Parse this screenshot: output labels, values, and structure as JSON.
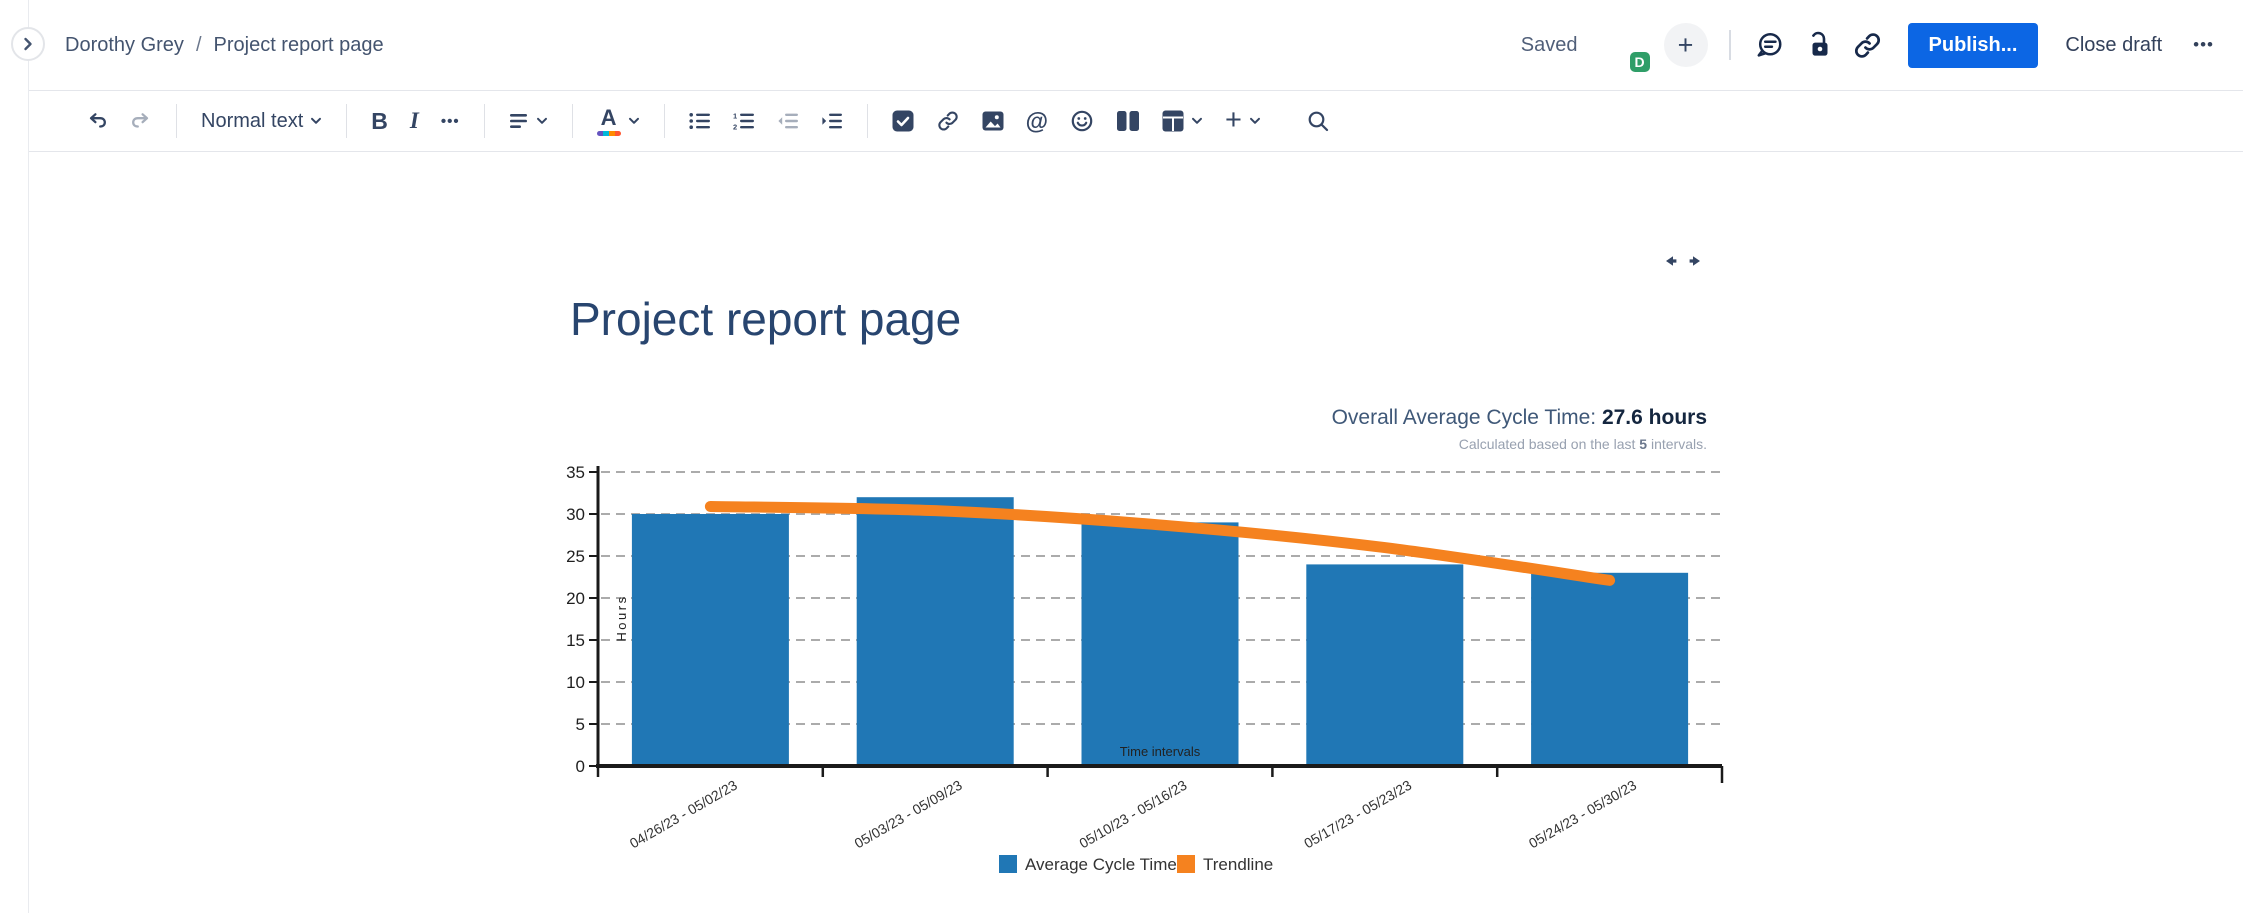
{
  "topbar": {
    "breadcrumb": {
      "items": [
        "Dorothy Grey",
        "Project report page"
      ],
      "separator": "/"
    },
    "saved_label": "Saved",
    "avatar_badge": "D",
    "add_collaborator_label": "+",
    "publish_label": "Publish...",
    "close_draft_label": "Close draft",
    "more_label": "•••"
  },
  "toolbar": {
    "text_style_label": "Normal text",
    "bold_label": "B",
    "italic_label": "I",
    "more_formatting_label": "•••",
    "text_color_letter": "A",
    "mention_label": "@",
    "insert_label": "+"
  },
  "content": {
    "page_title": "Project report page"
  },
  "chart_header": {
    "title_prefix": "Overall Average Cycle Time: ",
    "title_value": "27.6 hours",
    "subtitle_prefix": "Calculated based on the last ",
    "subtitle_bold": "5",
    "subtitle_suffix": " intervals."
  },
  "chart_data": {
    "type": "bar",
    "title": "Overall Average Cycle Time: 27.6 hours",
    "subtitle": "Calculated based on the last 5 intervals.",
    "categories": [
      "04/26/23 - 05/02/23",
      "05/03/23 - 05/09/23",
      "05/10/23 - 05/16/23",
      "05/17/23 - 05/23/23",
      "05/24/23 - 05/30/23"
    ],
    "series": [
      {
        "name": "Average Cycle Time",
        "type": "bar",
        "color": "#2077B5",
        "values": [
          30,
          32,
          29,
          24,
          23
        ]
      },
      {
        "name": "Trendline",
        "type": "line",
        "color": "#F5821F",
        "values": [
          30.9,
          30.4,
          28.7,
          26.0,
          22.1
        ]
      }
    ],
    "xlabel": "Time intervals",
    "ylabel": "Hours",
    "ylim": [
      0,
      35
    ],
    "ytick_step": 5,
    "grid": "horizontal-dashed",
    "legend_position": "bottom",
    "overall_average_hours": 27.6,
    "intervals_count": 5
  }
}
